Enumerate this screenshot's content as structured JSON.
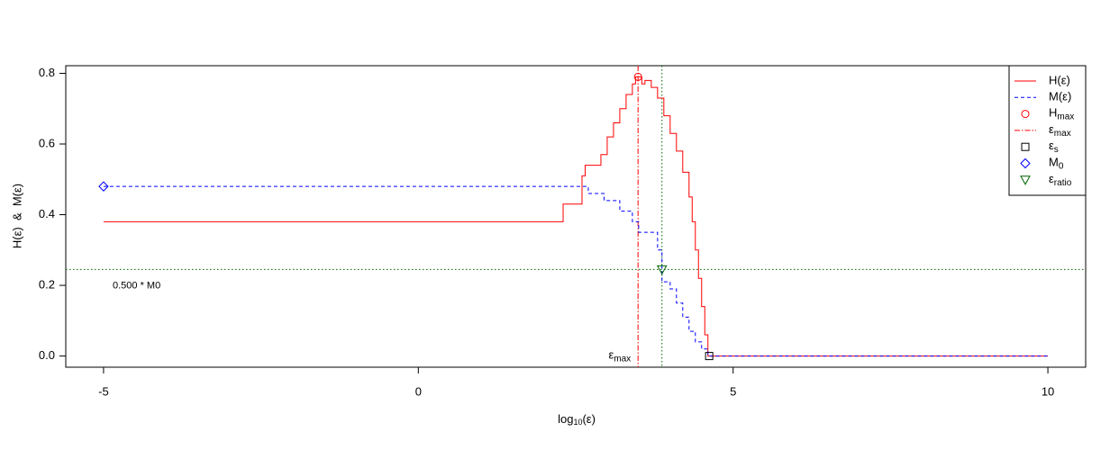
{
  "chart_data": {
    "type": "line",
    "step": true,
    "x_label": {
      "text": "log",
      "sub": "10",
      "after": "(ε)"
    },
    "y_label": "H(ε)  &  M(ε)",
    "xlim": [
      -5.6,
      10.6
    ],
    "ylim": [
      -0.0316,
      0.8216
    ],
    "xticks": [
      -5,
      0,
      5,
      10
    ],
    "yticks": [
      {
        "value": 0,
        "label": "0.0"
      },
      {
        "value": 0.2,
        "label": "0.2"
      },
      {
        "value": 0.4,
        "label": "0.4"
      },
      {
        "value": 0.6,
        "label": "0.6"
      },
      {
        "value": 0.8,
        "label": "0.8"
      }
    ],
    "series": [
      {
        "name": "H(ε)",
        "color": "#ff0000",
        "dash": "solid",
        "x": [
          -5,
          2.3,
          2.6,
          2.65,
          2.9,
          3.0,
          3.1,
          3.2,
          3.3,
          3.4,
          3.45,
          3.55,
          3.6,
          3.7,
          3.8,
          3.9,
          4.0,
          4.1,
          4.2,
          4.3,
          4.35,
          4.4,
          4.45,
          4.5,
          4.55,
          4.6,
          10
        ],
        "values": [
          0.38,
          0.43,
          0.51,
          0.54,
          0.57,
          0.62,
          0.66,
          0.7,
          0.74,
          0.77,
          0.79,
          0.77,
          0.78,
          0.76,
          0.73,
          0.68,
          0.63,
          0.58,
          0.52,
          0.45,
          0.38,
          0.3,
          0.22,
          0.14,
          0.06,
          0,
          0
        ]
      },
      {
        "name": "M(ε)",
        "color": "#0000ff",
        "dash": "dashed",
        "x": [
          -5,
          2.7,
          2.95,
          3.2,
          3.4,
          3.5,
          3.8,
          3.87,
          4.0,
          4.1,
          4.2,
          4.3,
          4.4,
          4.5,
          4.6,
          10
        ],
        "values": [
          0.48,
          0.46,
          0.44,
          0.41,
          0.38,
          0.35,
          0.3,
          0.21,
          0.19,
          0.15,
          0.11,
          0.07,
          0.04,
          0.02,
          0,
          0
        ]
      }
    ],
    "points": [
      {
        "name": "H",
        "sub": "max",
        "symbol": "circle",
        "color": "#ff0000",
        "x": 3.49,
        "y": 0.79
      },
      {
        "name": "ε",
        "sub": "s",
        "symbol": "square",
        "color": "#000000",
        "x": 4.62,
        "y": 0
      },
      {
        "name": "M",
        "sub": "0",
        "symbol": "diamond",
        "color": "#0000ff",
        "x": -5,
        "y": 0.48
      },
      {
        "name": "ε",
        "sub": "ratio",
        "symbol": "triangle",
        "color": "#006400",
        "x": 3.87,
        "y": 0.245
      }
    ],
    "vlines": [
      {
        "name": "ε",
        "sub": "max",
        "x": 3.49,
        "color": "#ff0000",
        "dash": "dashdot"
      },
      {
        "x": 3.87,
        "color": "#006400",
        "dash": "dotted"
      }
    ],
    "hlines": [
      {
        "y": 0.245,
        "color": "#006400",
        "dash": "dotted",
        "label": "0.500 * M0"
      }
    ],
    "legend_position": "topright"
  }
}
